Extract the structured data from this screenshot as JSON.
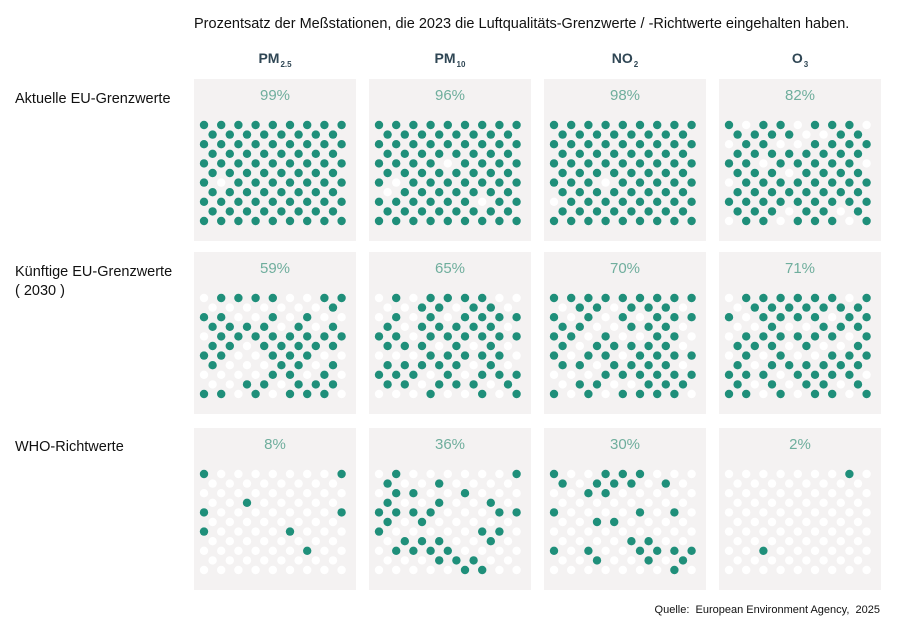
{
  "title": "Prozentsatz der Meßstationen, die 2023 die Luftqualitäts-Grenzwerte / -Richtwerte eingehalten haben.",
  "source": "Quelle:  European Environment Agency,  2025",
  "colors": {
    "filled": "#1f8f7a",
    "empty": "#ffffff",
    "panel": "#f4f2f2",
    "percent": "#6fae9d",
    "header": "#2f4654"
  },
  "chart_data": {
    "type": "waffle",
    "columns": [
      {
        "main": "PM",
        "sub": "2.5"
      },
      {
        "main": "PM",
        "sub": "10"
      },
      {
        "main": "NO",
        "sub": "2"
      },
      {
        "main": "O",
        "sub": "3"
      }
    ],
    "rows": [
      {
        "label_lines": [
          "Aktuelle EU-Grenzwerte"
        ],
        "values": [
          99,
          96,
          98,
          82
        ],
        "labels": [
          "99%",
          "96%",
          "98%",
          "82%"
        ]
      },
      {
        "label_lines": [
          "Künftige EU-Grenzwerte",
          "( 2030 )"
        ],
        "values": [
          59,
          65,
          70,
          71
        ],
        "labels": [
          "59%",
          "65%",
          "70%",
          "71%"
        ]
      },
      {
        "label_lines": [
          "WHO-Richtwerte"
        ],
        "values": [
          8,
          36,
          30,
          2
        ],
        "labels": [
          "8%",
          "36%",
          "30%",
          "2%"
        ]
      }
    ]
  }
}
